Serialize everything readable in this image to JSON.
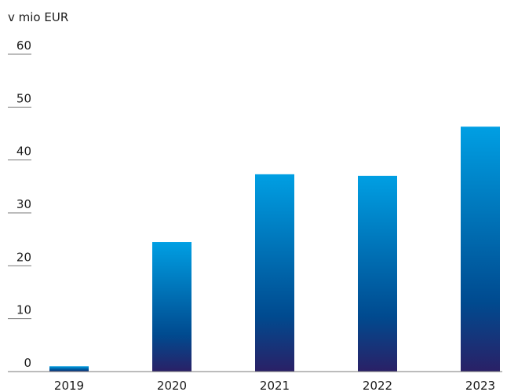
{
  "chart_data": {
    "type": "bar",
    "unit_label": "v mio EUR",
    "categories": [
      "2019",
      "2020",
      "2021",
      "2022",
      "2023"
    ],
    "values": [
      1,
      24.5,
      37.3,
      37,
      46.3
    ],
    "ylim": [
      0,
      60
    ],
    "yticks": [
      0,
      10,
      20,
      30,
      40,
      50,
      60
    ],
    "grid": false,
    "legend": "none",
    "colors": {
      "bar_top": "#009fe3",
      "bar_mid": "#004a8f",
      "bar_bottom": "#2a2066",
      "axis": "#7a7a7a",
      "text": "#1b1b1b"
    }
  }
}
